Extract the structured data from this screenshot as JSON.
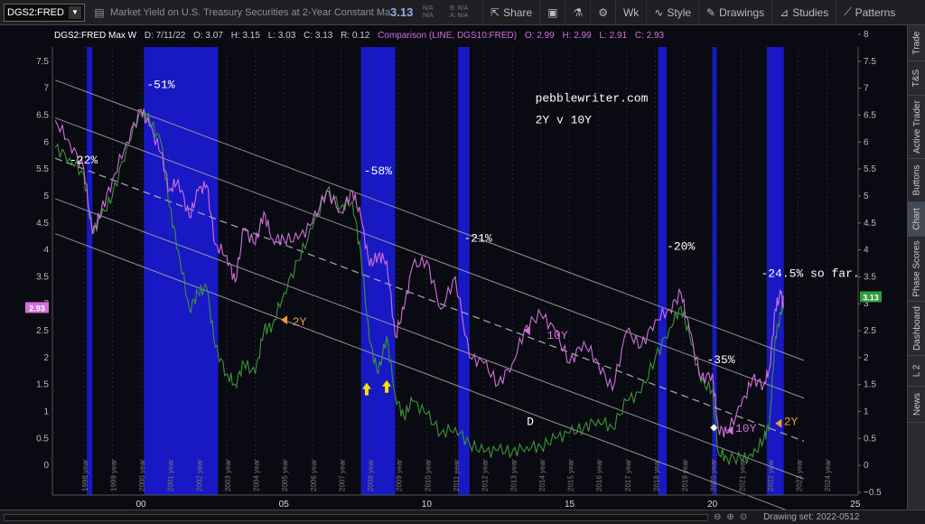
{
  "toolbar": {
    "symbol": "DGS2:FRED",
    "description": "Market Yield on U.S. Treasury Securities at 2-Year Constant Mat...",
    "last_price": "3.13",
    "na_1": "N/A",
    "na_2": "N/A",
    "na_bid": "B: N/A",
    "na_ask": "A: N/A",
    "share": "Share",
    "interval": "Wk",
    "style": "Style",
    "drawings": "Drawings",
    "studies": "Studies",
    "patterns": "Patterns"
  },
  "side_tabs": [
    "Trade",
    "T&S",
    "Active Trader",
    "Buttons",
    "Chart",
    "Phase Scores",
    "Dashboard",
    "L 2",
    "News"
  ],
  "bottom": {
    "drawing_set": "Drawing set: 2022-0512"
  },
  "chart_data": {
    "type": "line",
    "header": {
      "title": "DGS2:FRED Max W",
      "d": "D: 7/11/22",
      "o": "O: 3.07",
      "h": "H: 3.15",
      "l": "L: 3.03",
      "c": "C: 3.13",
      "r": "R: 0.12",
      "comparison": "Comparison (LINE, DGS10:FRED)",
      "co": "O: 2.99",
      "ch": "H: 2.99",
      "cl": "L: 2.91",
      "cc": "C: 2.93"
    },
    "left_ticks": [
      "0",
      "0.5",
      "1",
      "1.5",
      "2",
      "2.5",
      "3",
      "3.5",
      "4",
      "4.5",
      "5",
      "5.5",
      "6",
      "6.5",
      "7",
      "7.5"
    ],
    "right_ticks": [
      "−0.5",
      "0",
      "0.5",
      "1",
      "1.5",
      "2",
      "2.5",
      "3",
      "3.5",
      "4",
      "4.5",
      "5",
      "5.5",
      "6",
      "6.5",
      "7",
      "7.5",
      "8"
    ],
    "ylim": [
      -0.55,
      8.1
    ],
    "x_ticks": [
      "00",
      "05",
      "10",
      "15",
      "20",
      "25"
    ],
    "x_tick_years": [
      2000,
      2005,
      2010,
      2015,
      2020,
      2025
    ],
    "year_labels": [
      "1998 year",
      "1999 year",
      "2000 year",
      "2001 year",
      "2002 year",
      "2003 year",
      "2004 year",
      "2005 year",
      "2006 year",
      "2007 year",
      "2008 year",
      "2009 year",
      "2010 year",
      "2011 year",
      "2012 year",
      "2013 year",
      "2014 year",
      "2015 year",
      "2016 year",
      "2017 year",
      "2018 year",
      "2019 year",
      "2020 year",
      "2021 year",
      "2022 year",
      "2023 year",
      "2024 year"
    ],
    "year_label_start": 1998,
    "xlim": [
      1996.9,
      2025.1
    ],
    "shaded_periods": [
      [
        1998.1,
        1998.3
      ],
      [
        2000.1,
        2002.7
      ],
      [
        2007.7,
        2008.9
      ],
      [
        2011.1,
        2011.5
      ],
      [
        2018.1,
        2018.4
      ],
      [
        2020.0,
        2020.15
      ],
      [
        2021.9,
        2022.5
      ]
    ],
    "series": [
      {
        "name": "DGS2:FRED",
        "color": "#2e9e3a",
        "points": [
          [
            1997.0,
            5.9
          ],
          [
            1997.5,
            5.7
          ],
          [
            1998.0,
            5.4
          ],
          [
            1998.3,
            4.3
          ],
          [
            1998.6,
            4.6
          ],
          [
            1999.0,
            5.0
          ],
          [
            1999.5,
            5.9
          ],
          [
            2000.0,
            6.6
          ],
          [
            2000.3,
            6.4
          ],
          [
            2000.7,
            6.0
          ],
          [
            2001.0,
            4.8
          ],
          [
            2001.3,
            4.0
          ],
          [
            2001.7,
            2.9
          ],
          [
            2002.0,
            3.2
          ],
          [
            2002.3,
            3.3
          ],
          [
            2002.6,
            2.2
          ],
          [
            2003.0,
            1.7
          ],
          [
            2003.3,
            1.5
          ],
          [
            2003.6,
            1.9
          ],
          [
            2004.0,
            1.7
          ],
          [
            2004.3,
            2.5
          ],
          [
            2004.6,
            2.6
          ],
          [
            2005.0,
            3.2
          ],
          [
            2005.5,
            3.8
          ],
          [
            2006.0,
            4.4
          ],
          [
            2006.5,
            5.1
          ],
          [
            2007.0,
            4.8
          ],
          [
            2007.4,
            4.9
          ],
          [
            2007.7,
            3.9
          ],
          [
            2008.0,
            2.3
          ],
          [
            2008.3,
            1.7
          ],
          [
            2008.6,
            2.4
          ],
          [
            2008.9,
            1.3
          ],
          [
            2009.2,
            0.9
          ],
          [
            2009.5,
            1.2
          ],
          [
            2010.0,
            0.95
          ],
          [
            2010.5,
            0.6
          ],
          [
            2011.0,
            0.7
          ],
          [
            2011.5,
            0.4
          ],
          [
            2012.0,
            0.25
          ],
          [
            2012.5,
            0.28
          ],
          [
            2013.0,
            0.26
          ],
          [
            2013.5,
            0.35
          ],
          [
            2014.0,
            0.35
          ],
          [
            2014.5,
            0.5
          ],
          [
            2015.0,
            0.6
          ],
          [
            2015.5,
            0.7
          ],
          [
            2016.0,
            0.85
          ],
          [
            2016.5,
            0.7
          ],
          [
            2017.0,
            1.2
          ],
          [
            2017.5,
            1.35
          ],
          [
            2018.0,
            2.0
          ],
          [
            2018.5,
            2.55
          ],
          [
            2018.9,
            2.95
          ],
          [
            2019.2,
            2.4
          ],
          [
            2019.6,
            1.55
          ],
          [
            2020.0,
            1.4
          ],
          [
            2020.2,
            0.25
          ],
          [
            2020.5,
            0.15
          ],
          [
            2021.0,
            0.12
          ],
          [
            2021.4,
            0.16
          ],
          [
            2021.8,
            0.5
          ],
          [
            2022.0,
            0.8
          ],
          [
            2022.2,
            2.4
          ],
          [
            2022.4,
            2.8
          ],
          [
            2022.5,
            3.13
          ]
        ]
      },
      {
        "name": "DGS10:FRED",
        "color": "#d070d8",
        "points": [
          [
            1997.0,
            6.4
          ],
          [
            1997.5,
            6.0
          ],
          [
            1998.0,
            5.5
          ],
          [
            1998.3,
            4.3
          ],
          [
            1998.6,
            4.7
          ],
          [
            1999.0,
            5.3
          ],
          [
            1999.5,
            6.0
          ],
          [
            2000.0,
            6.6
          ],
          [
            2000.3,
            6.3
          ],
          [
            2000.7,
            5.8
          ],
          [
            2001.0,
            5.1
          ],
          [
            2001.3,
            5.3
          ],
          [
            2001.7,
            4.6
          ],
          [
            2002.0,
            5.1
          ],
          [
            2002.3,
            5.2
          ],
          [
            2002.6,
            4.1
          ],
          [
            2003.0,
            3.9
          ],
          [
            2003.3,
            3.4
          ],
          [
            2003.6,
            4.4
          ],
          [
            2004.0,
            4.1
          ],
          [
            2004.3,
            4.7
          ],
          [
            2004.6,
            4.2
          ],
          [
            2005.0,
            4.2
          ],
          [
            2005.5,
            4.2
          ],
          [
            2006.0,
            4.5
          ],
          [
            2006.5,
            5.1
          ],
          [
            2007.0,
            4.7
          ],
          [
            2007.4,
            5.1
          ],
          [
            2007.7,
            4.6
          ],
          [
            2008.0,
            3.7
          ],
          [
            2008.3,
            3.9
          ],
          [
            2008.6,
            3.8
          ],
          [
            2008.9,
            2.4
          ],
          [
            2009.2,
            2.9
          ],
          [
            2009.5,
            3.7
          ],
          [
            2010.0,
            3.8
          ],
          [
            2010.5,
            2.9
          ],
          [
            2011.0,
            3.5
          ],
          [
            2011.5,
            2.0
          ],
          [
            2012.0,
            1.9
          ],
          [
            2012.5,
            1.5
          ],
          [
            2013.0,
            1.9
          ],
          [
            2013.5,
            2.6
          ],
          [
            2014.0,
            2.8
          ],
          [
            2014.5,
            2.5
          ],
          [
            2015.0,
            1.9
          ],
          [
            2015.5,
            2.3
          ],
          [
            2016.0,
            1.9
          ],
          [
            2016.5,
            1.4
          ],
          [
            2017.0,
            2.5
          ],
          [
            2017.5,
            2.2
          ],
          [
            2018.0,
            2.7
          ],
          [
            2018.5,
            2.9
          ],
          [
            2018.9,
            3.2
          ],
          [
            2019.2,
            2.5
          ],
          [
            2019.6,
            1.6
          ],
          [
            2020.0,
            1.7
          ],
          [
            2020.2,
            0.7
          ],
          [
            2020.5,
            0.6
          ],
          [
            2021.0,
            1.1
          ],
          [
            2021.4,
            1.6
          ],
          [
            2021.8,
            1.5
          ],
          [
            2022.0,
            1.8
          ],
          [
            2022.2,
            2.9
          ],
          [
            2022.4,
            3.2
          ],
          [
            2022.5,
            2.93
          ]
        ]
      }
    ],
    "price_markers": [
      {
        "label": "3.13",
        "value": 3.13,
        "side": "right",
        "color": "#2e9e3a"
      },
      {
        "label": "2.93",
        "value": 2.93,
        "side": "left",
        "color": "#d070d8"
      }
    ],
    "channel_lines": [
      {
        "p1": [
          1997.0,
          7.15
        ],
        "p2": [
          2023.2,
          1.95
        ],
        "style": "solid"
      },
      {
        "p1": [
          1997.0,
          6.45
        ],
        "p2": [
          2023.2,
          1.25
        ],
        "style": "solid"
      },
      {
        "p1": [
          1997.0,
          5.7
        ],
        "p2": [
          2023.2,
          0.45
        ],
        "style": "dashed"
      },
      {
        "p1": [
          1997.0,
          4.95
        ],
        "p2": [
          2023.2,
          -0.25
        ],
        "style": "solid"
      },
      {
        "p1": [
          1997.0,
          4.3
        ],
        "p2": [
          2023.2,
          -0.95
        ],
        "style": "solid"
      }
    ],
    "annotations": [
      {
        "text": "-22%",
        "x": 1997.5,
        "y": 5.6,
        "color": "#ffffff"
      },
      {
        "text": "-51%",
        "x": 2000.2,
        "y": 7.0,
        "color": "#ffffff"
      },
      {
        "text": "-58%",
        "x": 2007.8,
        "y": 5.4,
        "color": "#ffffff"
      },
      {
        "text": "-21%",
        "x": 2011.3,
        "y": 4.15,
        "color": "#ffffff"
      },
      {
        "text": "-20%",
        "x": 2018.4,
        "y": 4.0,
        "color": "#ffffff"
      },
      {
        "text": "-35%",
        "x": 2019.8,
        "y": 1.9,
        "color": "#ffffff"
      },
      {
        "text": "-24.5% so far.",
        "x": 2021.7,
        "y": 3.5,
        "color": "#ffffff"
      },
      {
        "text": "pebblewriter.com",
        "x": 2013.8,
        "y": 6.75,
        "color": "#ffffff"
      },
      {
        "text": "2Y v 10Y",
        "x": 2013.8,
        "y": 6.35,
        "color": "#ffffff"
      },
      {
        "text": "2Y",
        "x": 2005.3,
        "y": 2.6,
        "color": "#e8a030"
      },
      {
        "text": "10Y",
        "x": 2014.2,
        "y": 2.35,
        "color": "#d070d8"
      },
      {
        "text": "10Y",
        "x": 2020.8,
        "y": 0.62,
        "color": "#d070d8"
      },
      {
        "text": "2Y",
        "x": 2022.5,
        "y": 0.75,
        "color": "#e8a030"
      },
      {
        "text": "D",
        "x": 2013.5,
        "y": 0.75,
        "color": "#ffffff"
      }
    ],
    "arrows": [
      {
        "kind": "left-triangle",
        "x": 2004.9,
        "y": 2.7,
        "color": "#e8a030"
      },
      {
        "kind": "left-triangle",
        "x": 2013.4,
        "y": 2.5,
        "color": "#d070d8"
      },
      {
        "kind": "left-triangle",
        "x": 2020.5,
        "y": 0.65,
        "color": "#d070d8"
      },
      {
        "kind": "left-triangle",
        "x": 2022.2,
        "y": 0.78,
        "color": "#e8a030"
      },
      {
        "kind": "up-arrow",
        "x": 2007.9,
        "y": 1.4,
        "color": "#f4e300"
      },
      {
        "kind": "up-arrow",
        "x": 2008.6,
        "y": 1.45,
        "color": "#f4e300"
      },
      {
        "kind": "diamond",
        "x": 2020.05,
        "y": 0.7,
        "color": "#ffffff"
      }
    ]
  }
}
